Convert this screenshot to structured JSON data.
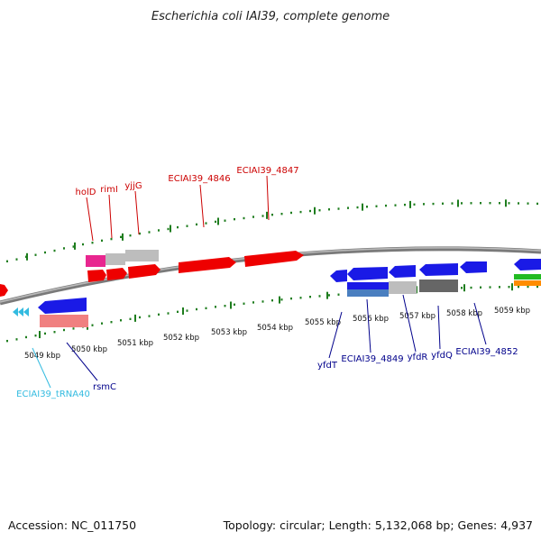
{
  "title": "Escherichia coli IAI39, complete genome",
  "footer": {
    "accession": "Accession: NC_011750",
    "summary": "Topology: circular; Length: 5,132,068 bp; Genes: 4,937"
  },
  "colors": {
    "forward_label": "#cc0000",
    "reverse_label": "#00008b",
    "trna_label": "#33bbe0",
    "tick": "#1e7d1e",
    "backbone": "#888888"
  },
  "kbp_ticks": [
    {
      "label": "5049 kbp"
    },
    {
      "label": "5050 kbp"
    },
    {
      "label": "5051 kbp"
    },
    {
      "label": "5052 kbp"
    },
    {
      "label": "5053 kbp"
    },
    {
      "label": "5054 kbp"
    },
    {
      "label": "5055 kbp"
    },
    {
      "label": "5056 kbp"
    },
    {
      "label": "5057 kbp"
    },
    {
      "label": "5058 kbp"
    },
    {
      "label": "5059 kbp"
    }
  ],
  "gene_labels": [
    {
      "text": "holD",
      "strand": "forward"
    },
    {
      "text": "rimI",
      "strand": "forward"
    },
    {
      "text": "yjjG",
      "strand": "forward"
    },
    {
      "text": "ECIAI39_4846",
      "strand": "forward"
    },
    {
      "text": "ECIAI39_4847",
      "strand": "forward"
    },
    {
      "text": "ECIAI39_tRNA40",
      "strand": "trna"
    },
    {
      "text": "rsmC",
      "strand": "reverse"
    },
    {
      "text": "yfdT",
      "strand": "reverse"
    },
    {
      "text": "ECIAI39_4849",
      "strand": "reverse"
    },
    {
      "text": "yfdR",
      "strand": "reverse"
    },
    {
      "text": "yfdQ",
      "strand": "reverse"
    },
    {
      "text": "ECIAI39_4852",
      "strand": "reverse"
    }
  ]
}
